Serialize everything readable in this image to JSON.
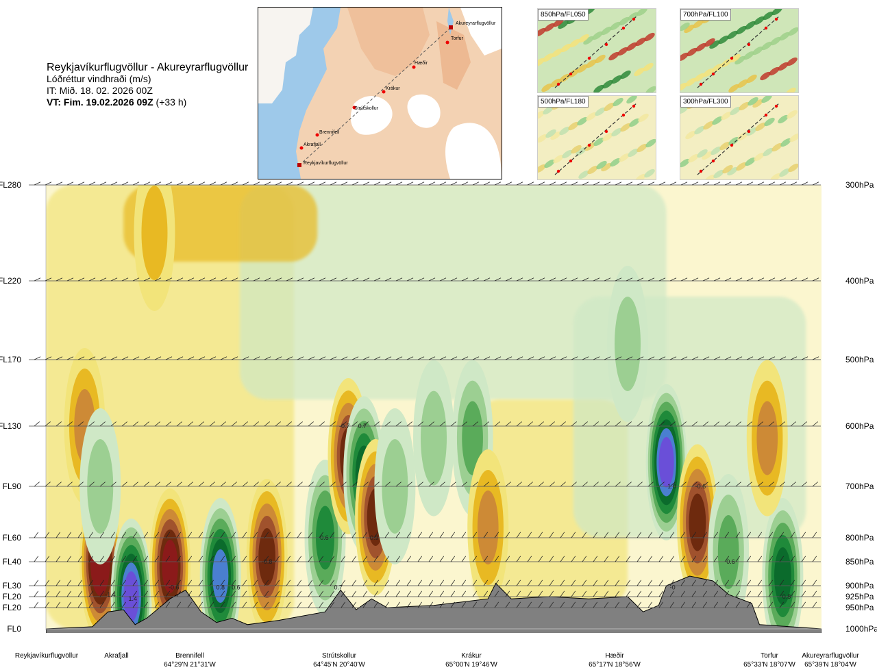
{
  "header": {
    "title": "Reykjavíkurflugvöllur - Akureyrarflugvöllur",
    "subtitle": "Lóðréttur vindhraði (m/s)",
    "it_line": "IT: Mið. 18. 02. 2026 00Z",
    "vt_bold": "VT: Fim. 19.02.2026 09Z",
    "vt_offset": " (+33 h)"
  },
  "map": {
    "route_stations": [
      "Akureyrarflugvöllur",
      "Torfur",
      "Hæðir",
      "Krákur",
      "Strútskollur",
      "Brennifell",
      "Akrafjall",
      "Reykjavíkurflugvöllur"
    ]
  },
  "thumbnails": [
    {
      "label": "850hPa/FL050"
    },
    {
      "label": "700hPa/FL100"
    },
    {
      "label": "500hPa/FL180"
    },
    {
      "label": "300hPa/FL300"
    }
  ],
  "chart_data": {
    "type": "heatmap",
    "variable": "Lóðréttur vindhraði (m/s)",
    "y_left_levels": [
      "FL280",
      "FL220",
      "FL170",
      "FL130",
      "FL90",
      "FL60",
      "FL40",
      "FL30",
      "FL20",
      "FL20",
      "FL0"
    ],
    "y_right_levels": [
      "300hPa",
      "400hPa",
      "500hPa",
      "600hPa",
      "700hPa",
      "800hPa",
      "850hPa",
      "900hPa",
      "925hPa",
      "950hPa",
      "1000hPa"
    ],
    "pressure_hpa": [
      300,
      400,
      500,
      600,
      700,
      800,
      850,
      900,
      925,
      950,
      1000
    ],
    "stations": [
      {
        "name": "Reykjavíkurflugvöllur",
        "coord": "",
        "x": 0.0
      },
      {
        "name": "Akrafjall",
        "coord": "",
        "x": 0.09
      },
      {
        "name": "Brennifell",
        "coord": "64°29'N 21°31'W",
        "x": 0.18
      },
      {
        "name": "Strútskollur",
        "coord": "64°45'N 20°40'W",
        "x": 0.38
      },
      {
        "name": "Krákur",
        "coord": "65°00'N 19°46'W",
        "x": 0.57
      },
      {
        "name": "Hæðir",
        "coord": "65°17'N 18°56'W",
        "x": 0.75
      },
      {
        "name": "Torfur",
        "coord": "65°33'N 18°07'W",
        "x": 0.93
      },
      {
        "name": "Akureyrarflugvöllur",
        "coord": "65°39'N 18°04'W",
        "x": 1.0
      }
    ],
    "value_labels": [
      {
        "text": "-1.4",
        "x": 0.083,
        "p": 920
      },
      {
        "text": "1.4",
        "x": 0.112,
        "p": 930
      },
      {
        "text": "-0.6",
        "x": 0.165,
        "p": 904
      },
      {
        "text": "0.8",
        "x": 0.225,
        "p": 904
      },
      {
        "text": "0.6",
        "x": 0.245,
        "p": 904
      },
      {
        "text": "-0.8",
        "x": 0.285,
        "p": 850
      },
      {
        "text": "-0.7",
        "x": 0.385,
        "p": 600
      },
      {
        "text": "0.7",
        "x": 0.408,
        "p": 600
      },
      {
        "text": "0.6",
        "x": 0.359,
        "p": 800
      },
      {
        "text": "-0.9",
        "x": 0.422,
        "p": 800
      },
      {
        "text": "0.7",
        "x": 0.377,
        "p": 904
      },
      {
        "text": "1.0",
        "x": 0.807,
        "p": 700
      },
      {
        "text": "-0.6",
        "x": 0.844,
        "p": 700
      },
      {
        "text": "-0",
        "x": 0.808,
        "p": 904
      },
      {
        "text": "0.6",
        "x": 0.883,
        "p": 850
      },
      {
        "text": "0.8",
        "x": 0.955,
        "p": 925
      }
    ],
    "blobs": [
      {
        "x": 0.07,
        "p": 850,
        "v": -1.4
      },
      {
        "x": 0.11,
        "p": 925,
        "v": 1.4
      },
      {
        "x": 0.16,
        "p": 860,
        "v": -1.2
      },
      {
        "x": 0.225,
        "p": 880,
        "v": 1.2
      },
      {
        "x": 0.285,
        "p": 840,
        "v": -1.0
      },
      {
        "x": 0.36,
        "p": 800,
        "v": 0.8
      },
      {
        "x": 0.39,
        "p": 650,
        "v": -0.9
      },
      {
        "x": 0.41,
        "p": 680,
        "v": 1.0
      },
      {
        "x": 0.425,
        "p": 760,
        "v": -0.9
      },
      {
        "x": 0.45,
        "p": 700,
        "v": 0.4
      },
      {
        "x": 0.5,
        "p": 620,
        "v": 0.4
      },
      {
        "x": 0.55,
        "p": 620,
        "v": 0.6
      },
      {
        "x": 0.57,
        "p": 780,
        "v": -0.5
      },
      {
        "x": 0.8,
        "p": 660,
        "v": 1.4
      },
      {
        "x": 0.84,
        "p": 770,
        "v": -0.9
      },
      {
        "x": 0.88,
        "p": 830,
        "v": 0.7
      },
      {
        "x": 0.95,
        "p": 880,
        "v": 0.9
      },
      {
        "x": 0.05,
        "p": 600,
        "v": -0.5
      },
      {
        "x": 0.07,
        "p": 700,
        "v": 0.4
      },
      {
        "x": 0.14,
        "p": 350,
        "v": -0.4
      },
      {
        "x": 0.75,
        "p": 480,
        "v": 0.4
      },
      {
        "x": 0.93,
        "p": 620,
        "v": -0.5
      }
    ],
    "terrain": [
      [
        0.0,
        1000
      ],
      [
        0.06,
        995
      ],
      [
        0.08,
        960
      ],
      [
        0.1,
        955
      ],
      [
        0.115,
        990
      ],
      [
        0.13,
        975
      ],
      [
        0.16,
        930
      ],
      [
        0.18,
        910
      ],
      [
        0.2,
        960
      ],
      [
        0.22,
        985
      ],
      [
        0.24,
        975
      ],
      [
        0.26,
        990
      ],
      [
        0.3,
        980
      ],
      [
        0.36,
        960
      ],
      [
        0.38,
        910
      ],
      [
        0.4,
        955
      ],
      [
        0.42,
        930
      ],
      [
        0.44,
        950
      ],
      [
        0.5,
        945
      ],
      [
        0.57,
        930
      ],
      [
        0.58,
        895
      ],
      [
        0.6,
        930
      ],
      [
        0.65,
        925
      ],
      [
        0.7,
        930
      ],
      [
        0.75,
        925
      ],
      [
        0.77,
        960
      ],
      [
        0.79,
        945
      ],
      [
        0.8,
        900
      ],
      [
        0.83,
        880
      ],
      [
        0.86,
        890
      ],
      [
        0.88,
        920
      ],
      [
        0.91,
        940
      ],
      [
        0.92,
        990
      ],
      [
        0.96,
        995
      ],
      [
        1.0,
        1000
      ]
    ],
    "color_scale": [
      {
        "v": -1.4,
        "color": "#8b1a1a"
      },
      {
        "v": -1.0,
        "color": "#6e2a0e"
      },
      {
        "v": -0.8,
        "color": "#a0522d"
      },
      {
        "v": -0.6,
        "color": "#cd8a36"
      },
      {
        "v": -0.4,
        "color": "#e8b923"
      },
      {
        "v": -0.2,
        "color": "#f2e47a"
      },
      {
        "v": 0.0,
        "color": "#fbf6cf"
      },
      {
        "v": 0.2,
        "color": "#cfe8c6"
      },
      {
        "v": 0.4,
        "color": "#9ccf92"
      },
      {
        "v": 0.6,
        "color": "#5aab5a"
      },
      {
        "v": 0.8,
        "color": "#1f8a3a"
      },
      {
        "v": 1.0,
        "color": "#0b6b2c"
      },
      {
        "v": 1.2,
        "color": "#4a7fd0"
      },
      {
        "v": 1.4,
        "color": "#6a4fd8"
      }
    ],
    "terrain_color": "#808080"
  }
}
